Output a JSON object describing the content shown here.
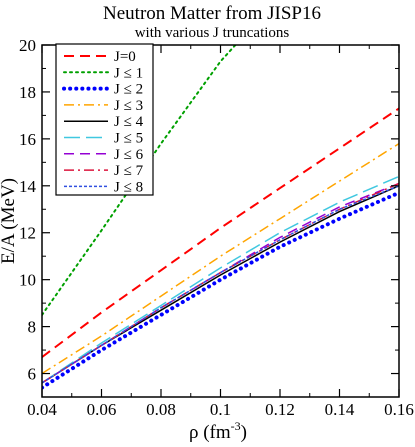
{
  "chart_data": {
    "type": "line",
    "title": "Neutron Matter from JISP16",
    "subtitle": "with various J truncations",
    "xlabel": "ρ (fm",
    "xlabel_sup": "-3",
    "xlabel_close": ")",
    "ylabel": "E/A (MeV)",
    "xlim": [
      0.04,
      0.16
    ],
    "ylim": [
      5,
      20
    ],
    "x_ticks": [
      0.04,
      0.06,
      0.08,
      0.1,
      0.12,
      0.14,
      0.16
    ],
    "x_tick_labels": [
      "0.04",
      "0.06",
      "0.08",
      "0.1",
      "0.12",
      "0.14",
      "0.16"
    ],
    "y_ticks": [
      6,
      8,
      10,
      12,
      14,
      16,
      18,
      20
    ],
    "y_tick_labels": [
      "6",
      "8",
      "10",
      "12",
      "14",
      "16",
      "18",
      "20"
    ],
    "grid": false,
    "legend_position": "top-left",
    "series": [
      {
        "name": "J=0",
        "color": "#ff0000",
        "dash": "dashed",
        "width": 2,
        "x": [
          0.04,
          0.06,
          0.08,
          0.1,
          0.12,
          0.14,
          0.16
        ],
        "y": [
          6.7,
          8.6,
          10.4,
          12.2,
          13.9,
          15.6,
          17.3
        ]
      },
      {
        "name": "J ≤ 1",
        "color": "#00a000",
        "dash": "dotted",
        "width": 2,
        "x": [
          0.04,
          0.06,
          0.08,
          0.1,
          0.105
        ],
        "y": [
          8.5,
          12.1,
          15.8,
          19.3,
          20.0
        ]
      },
      {
        "name": "J ≤ 2",
        "color": "#0000ff",
        "dash": "bigdots",
        "width": 4,
        "x": [
          0.04,
          0.06,
          0.08,
          0.1,
          0.12,
          0.14,
          0.16
        ],
        "y": [
          5.4,
          7.0,
          8.5,
          10.0,
          11.4,
          12.6,
          13.7
        ]
      },
      {
        "name": "J ≤ 3",
        "color": "#ffa500",
        "dash": "dashdot",
        "width": 1.5,
        "x": [
          0.04,
          0.06,
          0.08,
          0.1,
          0.12,
          0.14,
          0.16
        ],
        "y": [
          6.0,
          7.6,
          9.3,
          11.0,
          12.6,
          14.2,
          15.8
        ]
      },
      {
        "name": "J ≤ 4",
        "color": "#000000",
        "dash": "solid",
        "width": 1.5,
        "x": [
          0.04,
          0.06,
          0.08,
          0.1,
          0.12,
          0.14,
          0.16
        ],
        "y": [
          5.6,
          7.2,
          8.7,
          10.2,
          11.6,
          12.9,
          14.0
        ]
      },
      {
        "name": "J ≤ 5",
        "color": "#40c8e0",
        "dash": "longdash",
        "width": 1.5,
        "x": [
          0.04,
          0.06,
          0.08,
          0.1,
          0.12,
          0.14,
          0.16
        ],
        "y": [
          5.6,
          7.3,
          8.9,
          10.5,
          12.0,
          13.3,
          14.4
        ]
      },
      {
        "name": "J ≤ 6",
        "color": "#9400d3",
        "dash": "dashed",
        "width": 1.5,
        "x": [
          0.04,
          0.06,
          0.08,
          0.1,
          0.12,
          0.14,
          0.16
        ],
        "y": [
          5.6,
          7.2,
          8.8,
          10.3,
          11.8,
          13.1,
          14.1
        ]
      },
      {
        "name": "J ≤ 7",
        "color": "#dc143c",
        "dash": "dashdot",
        "width": 1.5,
        "x": [
          0.04,
          0.06,
          0.08,
          0.1,
          0.12,
          0.14,
          0.16
        ],
        "y": [
          5.6,
          7.2,
          8.8,
          10.3,
          11.7,
          13.0,
          14.1
        ]
      },
      {
        "name": "J ≤ 8",
        "color": "#3050e0",
        "dash": "crosshatch",
        "width": 1.5,
        "x": [
          0.04,
          0.06,
          0.08,
          0.1,
          0.12,
          0.14,
          0.16
        ],
        "y": [
          5.6,
          7.2,
          8.8,
          10.3,
          11.7,
          13.0,
          14.0
        ]
      }
    ]
  }
}
